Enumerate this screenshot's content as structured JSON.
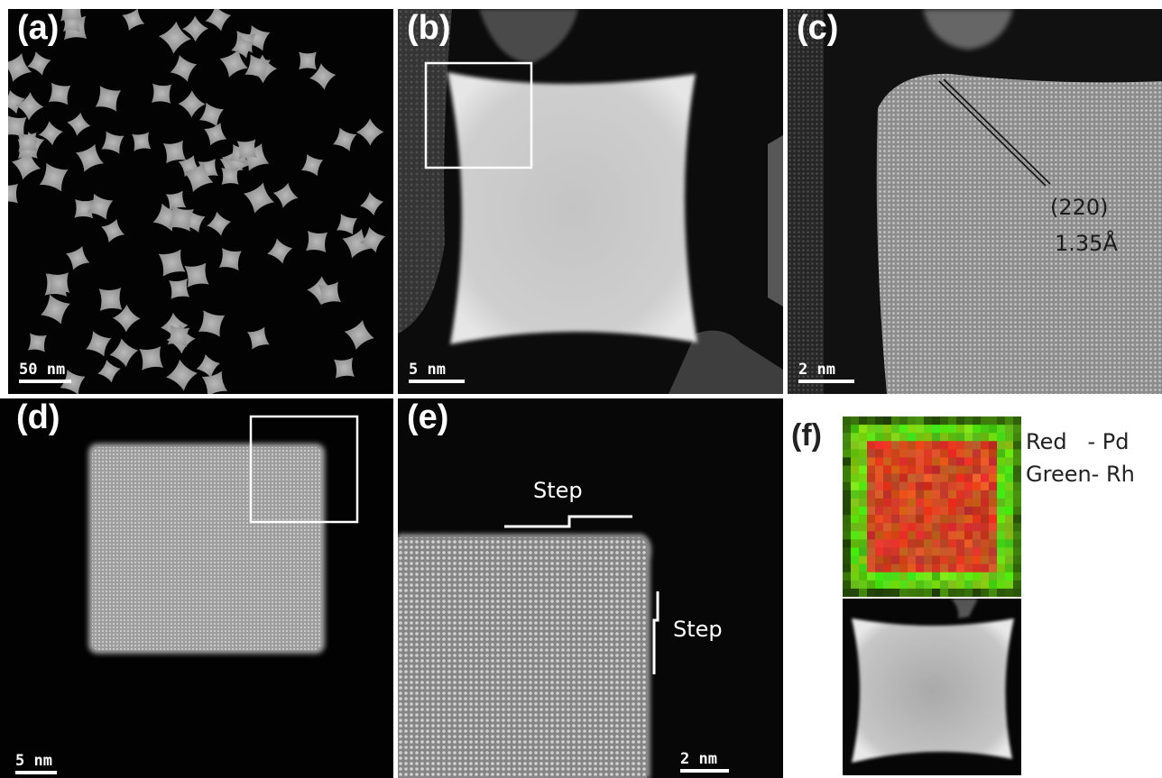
{
  "panels": {
    "a": {
      "label": "(a)",
      "scale": "50 nm"
    },
    "b": {
      "label": "(b)",
      "scale": "5 nm"
    },
    "c": {
      "label": "(c)",
      "scale": "2 nm",
      "plane": "(220)",
      "spacing": "1.35Å"
    },
    "d": {
      "label": "(d)",
      "scale": "5 nm"
    },
    "e": {
      "label": "(e)",
      "scale": "2 nm",
      "step_top": "Step",
      "step_right": "Step"
    },
    "f": {
      "label": "(f)",
      "legend_red": "Red   - Pd",
      "legend_green": "Green- Rh"
    }
  },
  "colors": {
    "pd": "#d4321c",
    "rh": "#5fdc12"
  }
}
